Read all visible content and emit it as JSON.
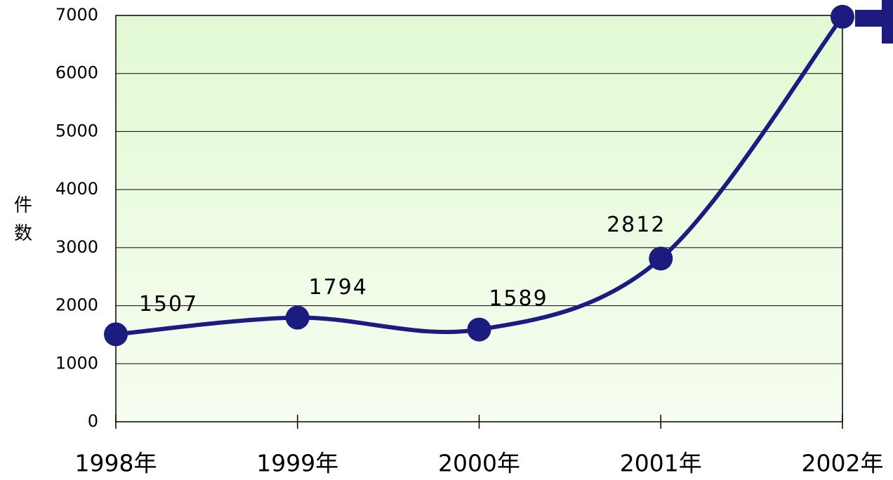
{
  "chart_data": {
    "type": "line",
    "y_label": "件数",
    "categories": [
      "1998年",
      "1999年",
      "2000年",
      "2001年",
      "2002年"
    ],
    "series": [
      {
        "name": null,
        "color": "#1c1c80",
        "values": [
          1507,
          1794,
          1589,
          2812,
          6978
        ]
      }
    ],
    "ylim": [
      0,
      7000
    ],
    "yticks": [
      0,
      1000,
      2000,
      3000,
      4000,
      5000,
      6000,
      7000
    ],
    "grid": true
  }
}
